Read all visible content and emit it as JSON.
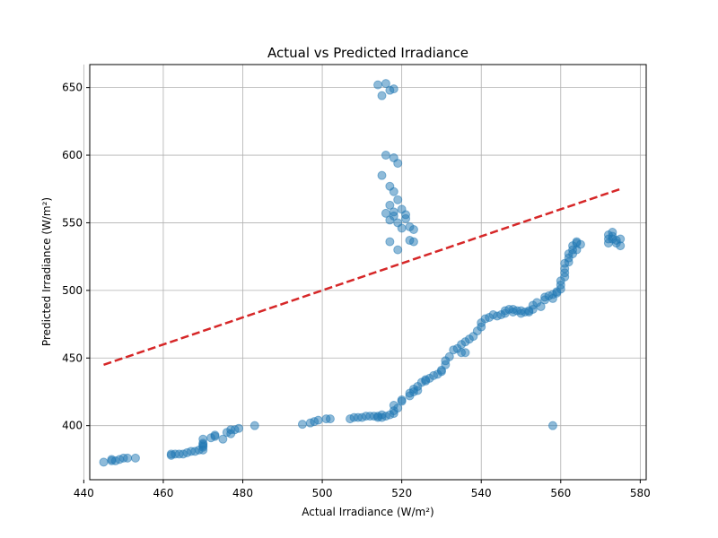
{
  "chart_data": {
    "type": "scatter",
    "title": "Actual vs Predicted Irradiance",
    "xlabel": "Actual Irradiance (W/m²)",
    "ylabel": "Predicted Irradiance (W/m²)",
    "xlim": [
      441.5,
      581.5
    ],
    "ylim": [
      360,
      667
    ],
    "xticks": [
      440,
      460,
      480,
      500,
      520,
      540,
      560,
      580
    ],
    "yticks": [
      400,
      450,
      500,
      550,
      600,
      650
    ],
    "grid": true,
    "colors": {
      "points": "#1f77b4",
      "ideal_line": "#d62728",
      "grid": "#b0b0b0"
    },
    "ideal_line": {
      "x": [
        445,
        575
      ],
      "y": [
        445,
        575
      ],
      "style": "dashed"
    },
    "series": [
      {
        "x": [
          445,
          447,
          447,
          448,
          449,
          450,
          451,
          453,
          462,
          462,
          463,
          464,
          465,
          466,
          467,
          468,
          469,
          470,
          470,
          470,
          470,
          470,
          470,
          472,
          473,
          473,
          475,
          476,
          477,
          477,
          478,
          479,
          483,
          495,
          497,
          498,
          499,
          501,
          502,
          507,
          508,
          509,
          510,
          511,
          512,
          513,
          514,
          514,
          515,
          515,
          516,
          517,
          518,
          518,
          518,
          519,
          520,
          520,
          522,
          522,
          523,
          523,
          524,
          524,
          525,
          526,
          526,
          527,
          528,
          529,
          530,
          530,
          531,
          531,
          532,
          533,
          534,
          535,
          535,
          536,
          536,
          537,
          538,
          539,
          540,
          540,
          541,
          542,
          543,
          544,
          545,
          546,
          546,
          547,
          548,
          548,
          549,
          550,
          550,
          551,
          552,
          552,
          553,
          553,
          554,
          555,
          556,
          556,
          557,
          558,
          558,
          559,
          559,
          560,
          560,
          560,
          561,
          561,
          561,
          561,
          562,
          562,
          562,
          563,
          563,
          563,
          564,
          564,
          564,
          565,
          558,
          572,
          572,
          572,
          573,
          573,
          573,
          574,
          574,
          575,
          575,
          514,
          515,
          516,
          517,
          518,
          516,
          518,
          519,
          515,
          517,
          518,
          519,
          517,
          518,
          516,
          517,
          518,
          519,
          521,
          521,
          520,
          522,
          522,
          523,
          523,
          517,
          519,
          520
        ],
        "y": [
          373,
          374,
          375,
          374,
          375,
          376,
          376,
          376,
          378,
          379,
          379,
          379,
          379,
          380,
          381,
          381,
          382,
          382,
          384,
          385,
          386,
          387,
          390,
          391,
          392,
          393,
          390,
          395,
          397,
          394,
          397,
          398,
          400,
          401,
          402,
          403,
          404,
          405,
          405,
          405,
          406,
          406,
          406,
          407,
          407,
          407,
          407,
          406,
          408,
          406,
          407,
          408,
          409,
          411,
          415,
          413,
          418,
          419,
          422,
          424,
          427,
          425,
          426,
          429,
          432,
          434,
          433,
          435,
          437,
          438,
          441,
          440,
          445,
          448,
          451,
          456,
          457,
          460,
          454,
          462,
          454,
          464,
          466,
          470,
          473,
          476,
          479,
          480,
          482,
          481,
          482,
          483,
          485,
          486,
          486,
          484,
          485,
          485,
          483,
          484,
          484,
          485,
          486,
          489,
          491,
          488,
          493,
          495,
          496,
          497,
          494,
          498,
          499,
          501,
          504,
          507,
          510,
          513,
          516,
          520,
          521,
          524,
          527,
          527,
          530,
          533,
          530,
          535,
          536,
          534,
          400,
          535,
          538,
          541,
          538,
          540,
          543,
          535,
          537,
          533,
          538,
          652,
          644,
          653,
          648,
          649,
          600,
          598,
          594,
          585,
          577,
          573,
          567,
          563,
          558,
          557,
          552,
          555,
          550,
          556,
          553,
          546,
          547,
          537,
          536,
          545,
          536,
          530,
          560
        ]
      }
    ]
  }
}
